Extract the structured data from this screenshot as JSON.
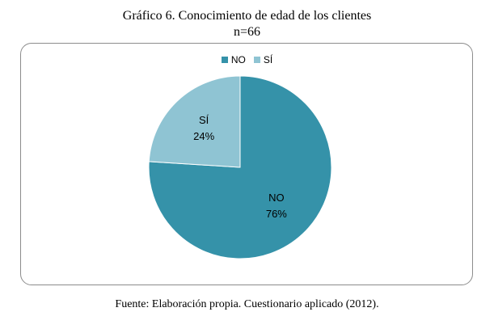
{
  "chart_data": {
    "type": "pie",
    "title": "Gráfico 6. Conocimiento de edad de los clientes",
    "subtitle": "n=66",
    "categories": [
      "NO",
      "SÍ"
    ],
    "values": [
      76,
      24
    ],
    "value_labels": [
      "76%",
      "24%"
    ],
    "colors": [
      "#3592A9",
      "#8FC4D3"
    ],
    "legend_placement": "top"
  },
  "source": "Fuente: Elaboración propia. Cuestionario aplicado (2012)."
}
